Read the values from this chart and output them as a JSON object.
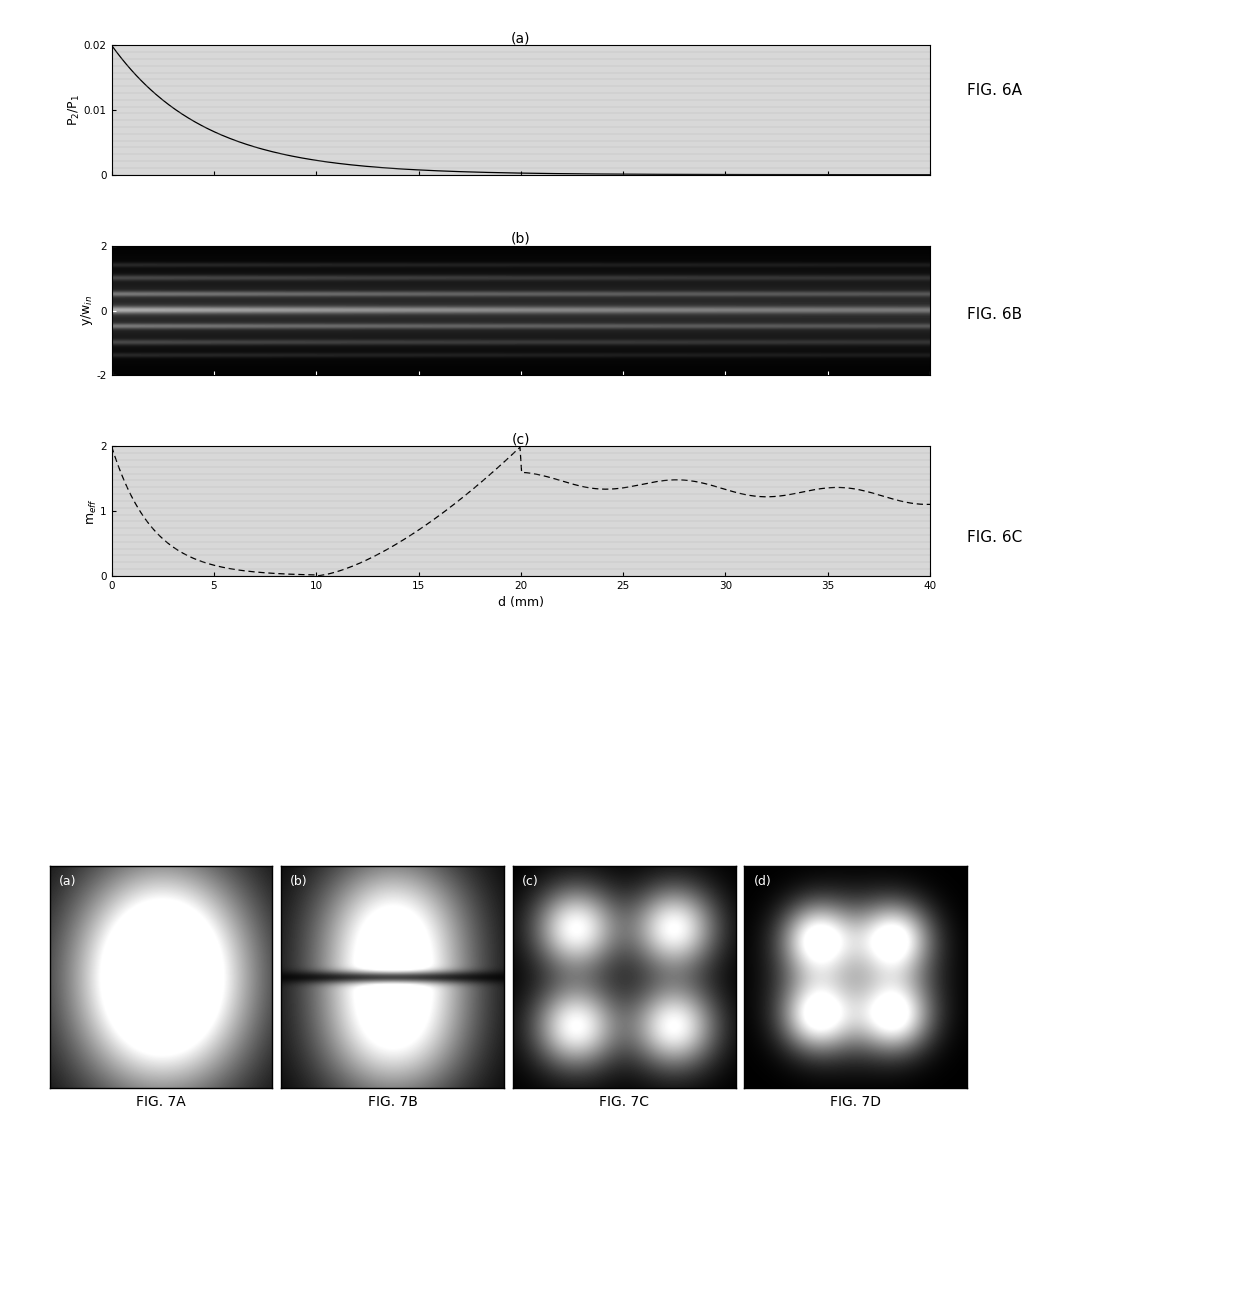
{
  "fig6a_title": "(a)",
  "fig6b_title": "(b)",
  "fig6c_title": "(c)",
  "xlabel": "d (mm)",
  "fig6a_ylabel": "P$_2$/P$_1$",
  "fig6b_ylabel": "y/w$_{in}$",
  "fig6c_ylabel": "m$_{eff}$",
  "fig6a_label": "FIG. 6A",
  "fig6b_label": "FIG. 6B",
  "fig6c_label": "FIG. 6C",
  "fig7a_label": "FIG. 7A",
  "fig7b_label": "FIG. 7B",
  "fig7c_label": "FIG. 7C",
  "fig7d_label": "FIG. 7D",
  "panel_labels_bottom": [
    "(a)",
    "(b)",
    "(c)",
    "(d)"
  ],
  "xlim": [
    0,
    40
  ],
  "fig6a_ylim": [
    0,
    0.02
  ],
  "fig6a_yticks": [
    0,
    0.01,
    0.02
  ],
  "fig6b_ylim": [
    -2,
    2
  ],
  "fig6b_yticks": [
    -2,
    0,
    2
  ],
  "fig6c_ylim": [
    0,
    2
  ],
  "fig6c_yticks": [
    0,
    1,
    2
  ],
  "xticks": [
    0,
    5,
    10,
    15,
    20,
    25,
    30,
    35,
    40
  ],
  "background_color": "#ffffff"
}
